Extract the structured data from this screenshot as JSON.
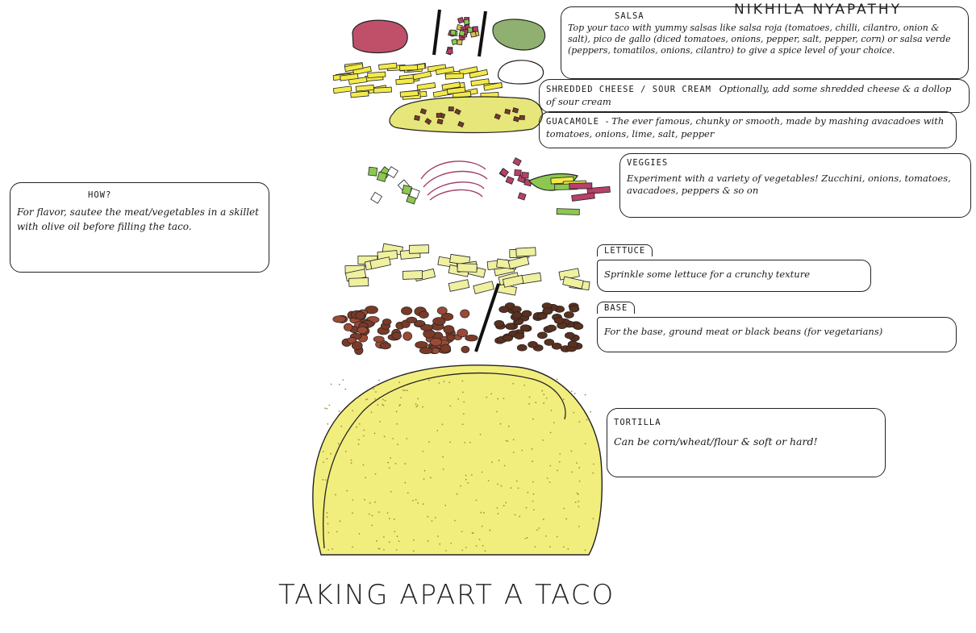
{
  "author": "NIKHILA NYAPATHY",
  "title": "TAKING APART A TACO",
  "notes": {
    "how": {
      "heading": "HOW?",
      "text": "For flavor, sautee the meat/vegetables in a skillet with olive oil before filling the taco."
    },
    "salsa": {
      "heading": "SALSA",
      "text": "Top your taco with yummy salsas like salsa roja (tomatoes, chilli, cilantro, onion & salt), pico de gallo (diced tomatoes, onions, pepper, salt, pepper, corn) or salsa verde (peppers, tomatilos, onions, cilantro) to give a spice level of your choice."
    },
    "cheese": {
      "heading": "SHREDDED CHEESE / SOUR CREAM",
      "text": "Optionally, add some shredded cheese & a dollop of sour cream"
    },
    "guacamole": {
      "heading": "GUACAMOLE",
      "text": "- The ever famous, chunky or smooth, made by mashing avacadoes with tomatoes, onions, lime, salt, pepper"
    },
    "veggies": {
      "heading": "VEGGIES",
      "text": "Experiment with a variety of vegetables! Zucchini, onions, tomatoes, avacadoes, peppers & so on"
    },
    "lettuce": {
      "heading": "LETTUCE",
      "text": "Sprinkle some lettuce for a crunchy texture"
    },
    "base": {
      "heading": "BASE",
      "text": "For the base, ground meat or black beans (for vegetarians)"
    },
    "tortilla": {
      "heading": "TORTILLA",
      "text": "Can be corn/wheat/flour & soft or hard!"
    }
  },
  "colors": {
    "salsa_roja": "#c0506a",
    "salsa_verde": "#8fb070",
    "pico": "#b8406a",
    "cheese": "#f3ea4a",
    "guacamole": "#e6e67a",
    "lettuce": "#eff0a0",
    "meat": "#7a3a28",
    "beans": "#5a3020",
    "tortilla": "#f2ee7e",
    "onion": "#a4406a",
    "zucchini": "#8cc850"
  }
}
